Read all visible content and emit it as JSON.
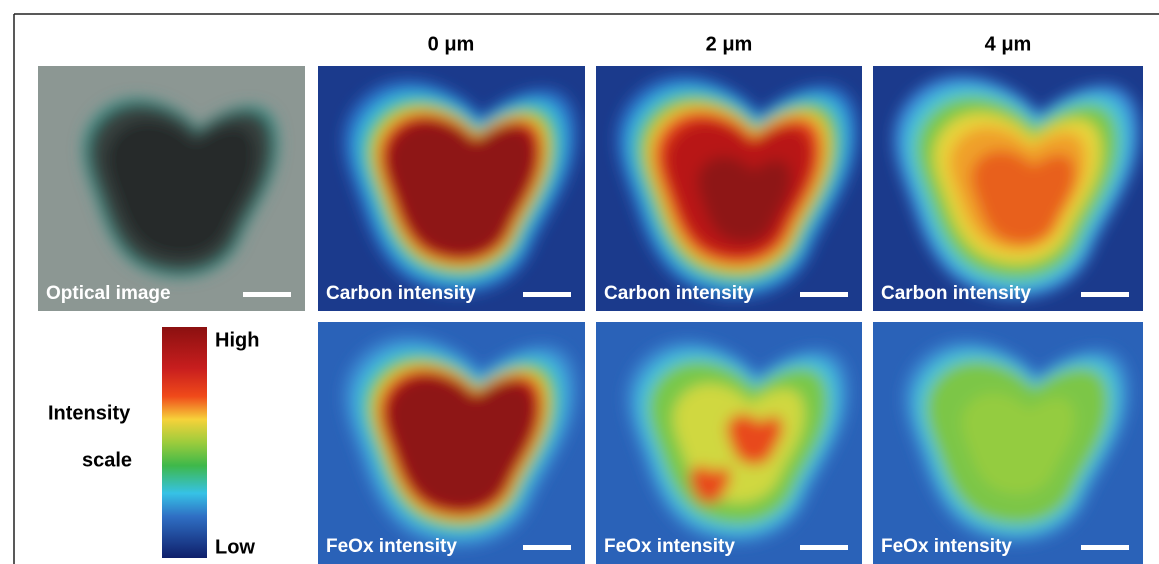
{
  "columns": [
    "0 μm",
    "2 μm",
    "4 μm"
  ],
  "optical": {
    "label": "Optical image"
  },
  "carbon_panels": [
    "Carbon intensity",
    "Carbon intensity",
    "Carbon intensity"
  ],
  "feox_panels": [
    "FeOx intensity",
    "FeOx intensity",
    "FeOx intensity"
  ],
  "scale": {
    "title": [
      "Intensity",
      "scale"
    ],
    "high": "High",
    "low": "Low"
  }
}
